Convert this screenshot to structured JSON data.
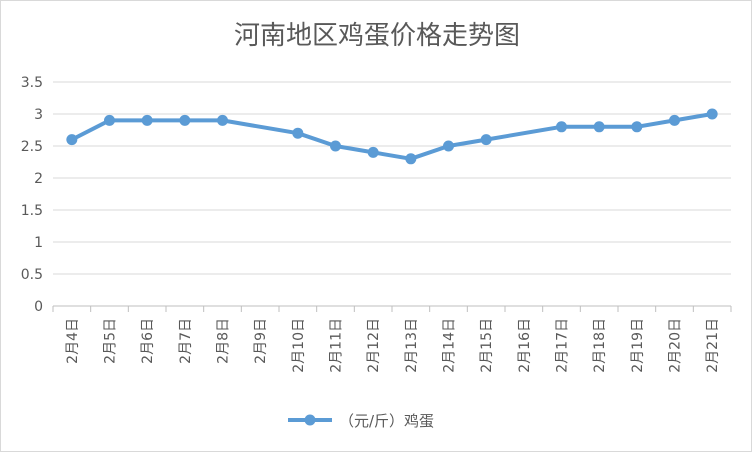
{
  "chart_data": {
    "type": "line",
    "title": "河南地区鸡蛋价格走势图",
    "xlabel": "",
    "ylabel": "",
    "categories": [
      "2月4日",
      "2月5日",
      "2月6日",
      "2月7日",
      "2月8日",
      "2月9日",
      "2月10日",
      "2月11日",
      "2月12日",
      "2月13日",
      "2月14日",
      "2月15日",
      "2月16日",
      "2月17日",
      "2月18日",
      "2月19日",
      "2月20日",
      "2月21日"
    ],
    "series": [
      {
        "name": "（元/斤）鸡蛋",
        "color": "#5b9bd5",
        "values": [
          2.6,
          2.9,
          2.9,
          2.9,
          2.9,
          null,
          2.7,
          2.5,
          2.4,
          2.3,
          2.5,
          2.6,
          null,
          2.8,
          2.8,
          2.8,
          2.9,
          3.0
        ]
      }
    ],
    "ylim": [
      0,
      3.5
    ],
    "yticks": [
      "0",
      "0.5",
      "1",
      "1.5",
      "2",
      "2.5",
      "3",
      "3.5"
    ],
    "grid": true,
    "legend": "bottom"
  }
}
